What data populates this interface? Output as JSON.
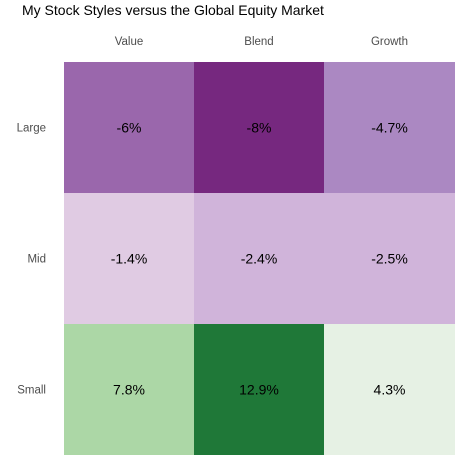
{
  "chart_data": {
    "type": "heatmap",
    "title": "My Stock Styles versus the Global Equity Market",
    "x_categories": [
      "Value",
      "Blend",
      "Growth"
    ],
    "y_categories": [
      "Large",
      "Mid",
      "Small"
    ],
    "values": [
      [
        -6.0,
        -8.0,
        -4.7
      ],
      [
        -1.4,
        -2.4,
        -2.5
      ],
      [
        7.8,
        12.9,
        4.3
      ]
    ],
    "labels": [
      [
        "-6%",
        "-8%",
        "-4.7%"
      ],
      [
        "-1.4%",
        "-2.4%",
        "-2.5%"
      ],
      [
        "7.8%",
        "12.9%",
        "4.3%"
      ]
    ],
    "colors": [
      [
        "#9a67ac",
        "#76287f",
        "#ab88c2"
      ],
      [
        "#e0cbe3",
        "#d0b4da",
        "#d0b4da"
      ],
      [
        "#acd7a6",
        "#1f7838",
        "#e6f1e4"
      ]
    ],
    "x_axis_position": "top",
    "grid": false,
    "legend": "none"
  }
}
